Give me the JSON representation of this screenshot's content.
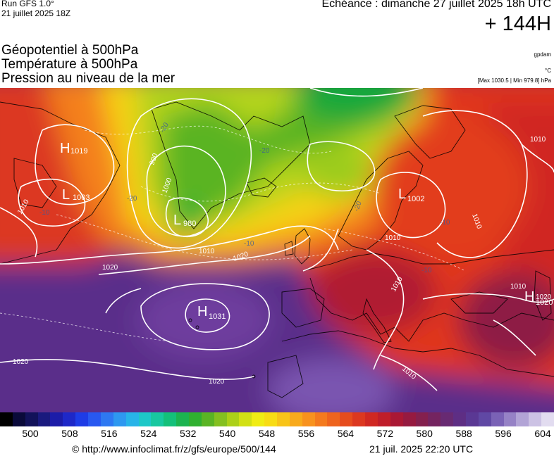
{
  "header": {
    "run_title": "Run GFS 1.0°",
    "run_date": "21 juillet 2025 18Z",
    "echeance": "Echéance : dimanche 27 juillet 2025 18h UTC",
    "lead_time": "+ 144H"
  },
  "fields": {
    "geopotential": "Géopotentiel à 500hPa",
    "temperature": "Température à 500hPa",
    "pressure": "Pression au niveau de la mer"
  },
  "units": {
    "geopotential_unit": "gpdam",
    "temperature_unit": "°C",
    "pressure_range": "[Max 1030.5 | Min 979.8] hPa"
  },
  "pressure_systems": [
    {
      "type": "H",
      "value": "1019"
    },
    {
      "type": "L",
      "value": "1003"
    },
    {
      "type": "L",
      "value": "980"
    },
    {
      "type": "H",
      "value": "1031"
    },
    {
      "type": "L",
      "value": "1002"
    },
    {
      "type": "H",
      "value": "1020"
    }
  ],
  "isobar_labels": [
    "1010",
    "1020",
    "1010",
    "1020",
    "1000",
    "990",
    "1020",
    "1020",
    "1020",
    "1010",
    "1010",
    "1010",
    "1010",
    "1010",
    "1010"
  ],
  "temperature_labels": [
    "-20",
    "-20",
    "-20",
    "-20",
    "-10",
    "-10",
    "-10",
    "-10"
  ],
  "colorbar": {
    "colors": [
      "#000000",
      "#0a0a3a",
      "#12125a",
      "#1a1a7e",
      "#1c1ca8",
      "#1e28c8",
      "#1e3ce6",
      "#2858f0",
      "#2e78f2",
      "#2e98f0",
      "#28b4e8",
      "#1ec8c8",
      "#18c8a0",
      "#14c07a",
      "#1cb450",
      "#30b030",
      "#5ab424",
      "#84c020",
      "#acd018",
      "#d2e014",
      "#f0ec14",
      "#f8dc14",
      "#f8c418",
      "#f8aa1c",
      "#f8921e",
      "#f47a1e",
      "#ee641e",
      "#e64c1e",
      "#dc3820",
      "#d02822",
      "#c01e2a",
      "#aa1834",
      "#961a40",
      "#84204e",
      "#742460",
      "#682a72",
      "#5e2e84",
      "#5a3894",
      "#6048a4",
      "#7a62b6",
      "#9682c6",
      "#b2a4d6",
      "#ccc2e4",
      "#e2dcf0"
    ],
    "labels": [
      "500",
      "508",
      "516",
      "524",
      "532",
      "540",
      "548",
      "556",
      "564",
      "572",
      "580",
      "588",
      "596",
      "604"
    ]
  },
  "footer": {
    "url": "© http://www.infoclimat.fr/z/gfs/europe/500/144",
    "generated": "21 juil. 2025 22:20 UTC"
  }
}
